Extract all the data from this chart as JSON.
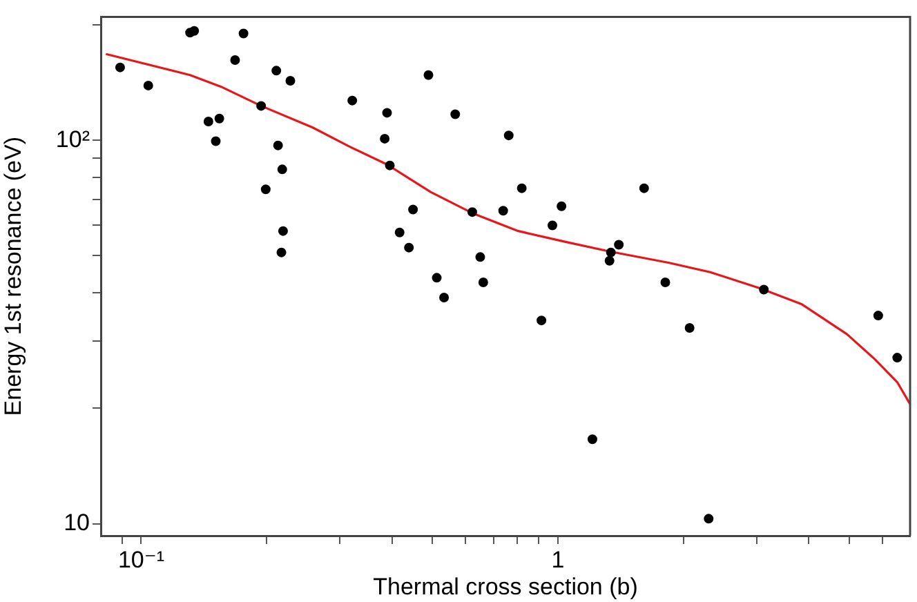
{
  "chart_data": {
    "type": "scatter",
    "xlabel": "Thermal cross section (b)",
    "ylabel": "Energy 1st resonance (eV)",
    "log": "xy",
    "grid": false,
    "legend": false,
    "marker": "circle",
    "xlim": [
      0.08,
      7.0
    ],
    "ylim": [
      9.3,
      210
    ],
    "xticks": [
      {
        "value": 0.09,
        "label": null
      },
      {
        "value": 0.1,
        "label": "10⁻¹"
      },
      {
        "value": 0.2,
        "label": null
      },
      {
        "value": 0.3,
        "label": null
      },
      {
        "value": 0.4,
        "label": null
      },
      {
        "value": 0.5,
        "label": null
      },
      {
        "value": 0.6,
        "label": null
      },
      {
        "value": 0.7,
        "label": null
      },
      {
        "value": 0.8,
        "label": null
      },
      {
        "value": 0.9,
        "label": null
      },
      {
        "value": 1,
        "label": "1"
      },
      {
        "value": 2,
        "label": null
      },
      {
        "value": 3,
        "label": null
      },
      {
        "value": 4,
        "label": null
      },
      {
        "value": 5,
        "label": null
      },
      {
        "value": 6,
        "label": null
      }
    ],
    "yticks": [
      {
        "value": 10,
        "label": "10"
      },
      {
        "value": 20,
        "label": null
      },
      {
        "value": 30,
        "label": null
      },
      {
        "value": 40,
        "label": null
      },
      {
        "value": 50,
        "label": null
      },
      {
        "value": 60,
        "label": null
      },
      {
        "value": 70,
        "label": null
      },
      {
        "value": 80,
        "label": null
      },
      {
        "value": 90,
        "label": null
      },
      {
        "value": 100,
        "label": "10²"
      },
      {
        "value": 200,
        "label": null
      }
    ],
    "series": [
      {
        "type": "scatter",
        "color": "#000000",
        "x": [
          0.089,
          0.104,
          0.131,
          0.134,
          0.176,
          0.168,
          0.211,
          0.228,
          0.145,
          0.154,
          0.151,
          0.194,
          0.213,
          0.218,
          0.199,
          0.219,
          0.217,
          0.321,
          0.389,
          0.384,
          0.395,
          0.489,
          0.567,
          0.449,
          0.417,
          0.439,
          0.623,
          0.651,
          0.662,
          0.512,
          0.533,
          0.762,
          0.819,
          1.61,
          0.739,
          1.02,
          0.97,
          1.34,
          1.33,
          1.4,
          1.81,
          3.12,
          0.913,
          2.07,
          1.21,
          2.3,
          5.87,
          6.52
        ],
        "values": [
          155,
          139,
          191,
          193,
          190,
          162,
          152,
          143,
          112,
          114,
          99.5,
          123,
          97,
          84,
          74.5,
          58,
          51,
          127,
          118,
          101,
          86,
          148,
          117,
          66,
          57.5,
          52.5,
          65,
          49.6,
          42.6,
          43.8,
          38.9,
          103,
          75,
          75,
          65.5,
          67.3,
          60,
          51,
          48.5,
          53.4,
          42.6,
          40.8,
          33.9,
          32.4,
          16.6,
          10.3,
          34.9,
          27.1
        ]
      },
      {
        "type": "line",
        "color": "#e8161b",
        "marker": "none",
        "x": [
          0.0823,
          0.131,
          0.1555,
          0.194,
          0.258,
          0.315,
          0.389,
          0.495,
          0.623,
          0.803,
          1.03,
          1.33,
          1.85,
          2.32,
          3.06,
          3.84,
          4.94,
          5.75,
          6.52,
          7.0
        ],
        "values": [
          168,
          148,
          138,
          123,
          108,
          96.5,
          86.5,
          73.3,
          64.6,
          58,
          54.5,
          51.3,
          47.9,
          45.3,
          41.1,
          37.4,
          31.2,
          26.9,
          23.4,
          20.5
        ]
      }
    ]
  }
}
